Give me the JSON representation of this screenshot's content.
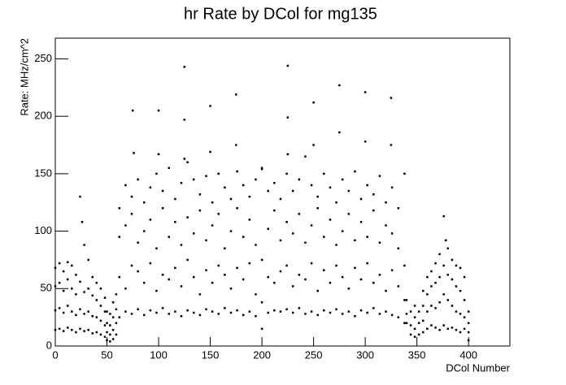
{
  "chart_data": {
    "type": "scatter",
    "title": "hr Rate by DCol for mg135",
    "x_label": "DCol Number",
    "y_label": "Rate: MHz/cm^2",
    "color": "#000000",
    "xlim": [
      0,
      440
    ],
    "ylim": [
      0,
      268
    ],
    "xticks": [
      0,
      50,
      100,
      150,
      200,
      250,
      300,
      350,
      400
    ],
    "yticks": [
      0,
      50,
      100,
      150,
      200,
      250
    ],
    "grid": false,
    "x": [
      0,
      0,
      0,
      0,
      4,
      4,
      4,
      4,
      8,
      8,
      8,
      8,
      12,
      12,
      12,
      12,
      16,
      16,
      16,
      16,
      20,
      20,
      20,
      20,
      24,
      24,
      24,
      24,
      26,
      28,
      28,
      28,
      28,
      32,
      32,
      32,
      32,
      36,
      36,
      36,
      36,
      40,
      40,
      40,
      40,
      44,
      44,
      44,
      44,
      48,
      48,
      48,
      48,
      50,
      50,
      50,
      50,
      53,
      53,
      53,
      53,
      56,
      56,
      56,
      56,
      59,
      59,
      59,
      59,
      62,
      62,
      62,
      62,
      68,
      68,
      68,
      68,
      74,
      74,
      74,
      74,
      80,
      80,
      80,
      80,
      86,
      86,
      86,
      86,
      92,
      92,
      92,
      92,
      98,
      98,
      98,
      98,
      104,
      104,
      104,
      104,
      110,
      110,
      110,
      110,
      116,
      116,
      116,
      116,
      122,
      122,
      122,
      122,
      128,
      128,
      128,
      128,
      134,
      134,
      134,
      134,
      140,
      140,
      140,
      140,
      146,
      146,
      146,
      146,
      152,
      152,
      152,
      152,
      158,
      158,
      158,
      158,
      164,
      164,
      164,
      164,
      170,
      170,
      170,
      170,
      176,
      176,
      176,
      176,
      182,
      182,
      182,
      182,
      188,
      188,
      188,
      188,
      194,
      194,
      194,
      194,
      200,
      200,
      200,
      200,
      206,
      206,
      206,
      206,
      212,
      212,
      212,
      212,
      218,
      218,
      218,
      218,
      224,
      224,
      224,
      224,
      230,
      230,
      230,
      230,
      236,
      236,
      236,
      236,
      242,
      242,
      242,
      242,
      248,
      248,
      248,
      248,
      254,
      254,
      254,
      254,
      260,
      260,
      260,
      260,
      266,
      266,
      266,
      266,
      272,
      272,
      272,
      272,
      278,
      278,
      278,
      278,
      284,
      284,
      284,
      284,
      290,
      290,
      290,
      290,
      296,
      296,
      296,
      296,
      302,
      302,
      302,
      302,
      308,
      308,
      308,
      308,
      314,
      314,
      314,
      314,
      320,
      320,
      320,
      320,
      326,
      326,
      326,
      326,
      332,
      332,
      332,
      332,
      338,
      338,
      338,
      338,
      75,
      76,
      100,
      100,
      125,
      125,
      125,
      150,
      150,
      175,
      175,
      200,
      225,
      225,
      225,
      250,
      250,
      275,
      275,
      300,
      300,
      325,
      325,
      340,
      340,
      340,
      344,
      344,
      344,
      348,
      348,
      348,
      348,
      352,
      352,
      352,
      356,
      356,
      356,
      356,
      360,
      360,
      360,
      360,
      364,
      364,
      364,
      364,
      368,
      368,
      368,
      368,
      372,
      372,
      372,
      372,
      376,
      376,
      376,
      376,
      378,
      380,
      380,
      380,
      380,
      384,
      384,
      384,
      384,
      388,
      388,
      388,
      388,
      392,
      392,
      392,
      392,
      396,
      396,
      396,
      396,
      400,
      400,
      400,
      400
    ],
    "values": [
      14,
      31,
      52,
      68,
      15,
      33,
      55,
      72,
      13,
      29,
      48,
      65,
      16,
      35,
      58,
      73,
      14,
      30,
      50,
      70,
      12,
      27,
      45,
      62,
      15,
      32,
      56,
      130,
      108,
      13,
      28,
      47,
      88,
      14,
      30,
      50,
      75,
      11,
      26,
      44,
      60,
      12,
      25,
      40,
      55,
      10,
      22,
      35,
      50,
      8,
      18,
      30,
      42,
      5,
      12,
      20,
      30,
      4,
      10,
      18,
      28,
      6,
      14,
      25,
      38,
      10,
      20,
      32,
      45,
      25,
      60,
      95,
      120,
      30,
      50,
      105,
      140,
      28,
      70,
      115,
      130,
      32,
      65,
      90,
      145,
      27,
      55,
      100,
      125,
      31,
      72,
      110,
      138,
      29,
      48,
      85,
      150,
      33,
      62,
      120,
      135,
      28,
      58,
      95,
      155,
      30,
      68,
      108,
      128,
      26,
      52,
      88,
      142,
      31,
      75,
      112,
      160,
      29,
      60,
      98,
      145,
      27,
      45,
      118,
      132,
      32,
      66,
      92,
      148,
      30,
      55,
      105,
      125,
      28,
      70,
      115,
      150,
      33,
      62,
      85,
      138,
      29,
      50,
      100,
      128,
      31,
      68,
      120,
      152,
      27,
      58,
      95,
      140,
      30,
      72,
      110,
      130,
      26,
      45,
      88,
      145,
      15,
      38,
      75,
      155,
      29,
      60,
      102,
      135,
      31,
      55,
      118,
      142,
      30,
      65,
      92,
      128,
      32,
      70,
      108,
      150,
      29,
      52,
      98,
      135,
      33,
      62,
      115,
      145,
      28,
      58,
      90,
      165,
      30,
      72,
      105,
      140,
      27,
      48,
      120,
      130,
      31,
      66,
      95,
      150,
      29,
      55,
      110,
      138,
      32,
      70,
      88,
      125,
      28,
      60,
      100,
      145,
      30,
      50,
      115,
      135,
      26,
      68,
      92,
      152,
      31,
      58,
      108,
      128,
      29,
      72,
      95,
      140,
      33,
      55,
      118,
      132,
      28,
      62,
      90,
      148,
      30,
      48,
      105,
      125,
      27,
      66,
      98,
      138,
      25,
      52,
      85,
      120,
      20,
      40,
      70,
      150,
      205,
      168,
      205,
      167,
      243,
      197,
      163,
      209,
      169,
      219,
      175,
      154,
      244,
      199,
      167,
      212,
      175,
      227,
      186,
      221,
      178,
      216,
      175,
      20,
      28,
      40,
      10,
      18,
      30,
      8,
      15,
      25,
      35,
      10,
      20,
      30,
      12,
      22,
      35,
      48,
      15,
      30,
      45,
      60,
      18,
      35,
      52,
      65,
      16,
      33,
      55,
      72,
      14,
      38,
      60,
      80,
      18,
      45,
      70,
      113,
      92,
      15,
      40,
      62,
      85,
      16,
      35,
      58,
      75,
      14,
      30,
      52,
      70,
      12,
      28,
      48,
      68,
      15,
      25,
      40,
      60,
      5,
      12,
      20,
      30
    ]
  }
}
